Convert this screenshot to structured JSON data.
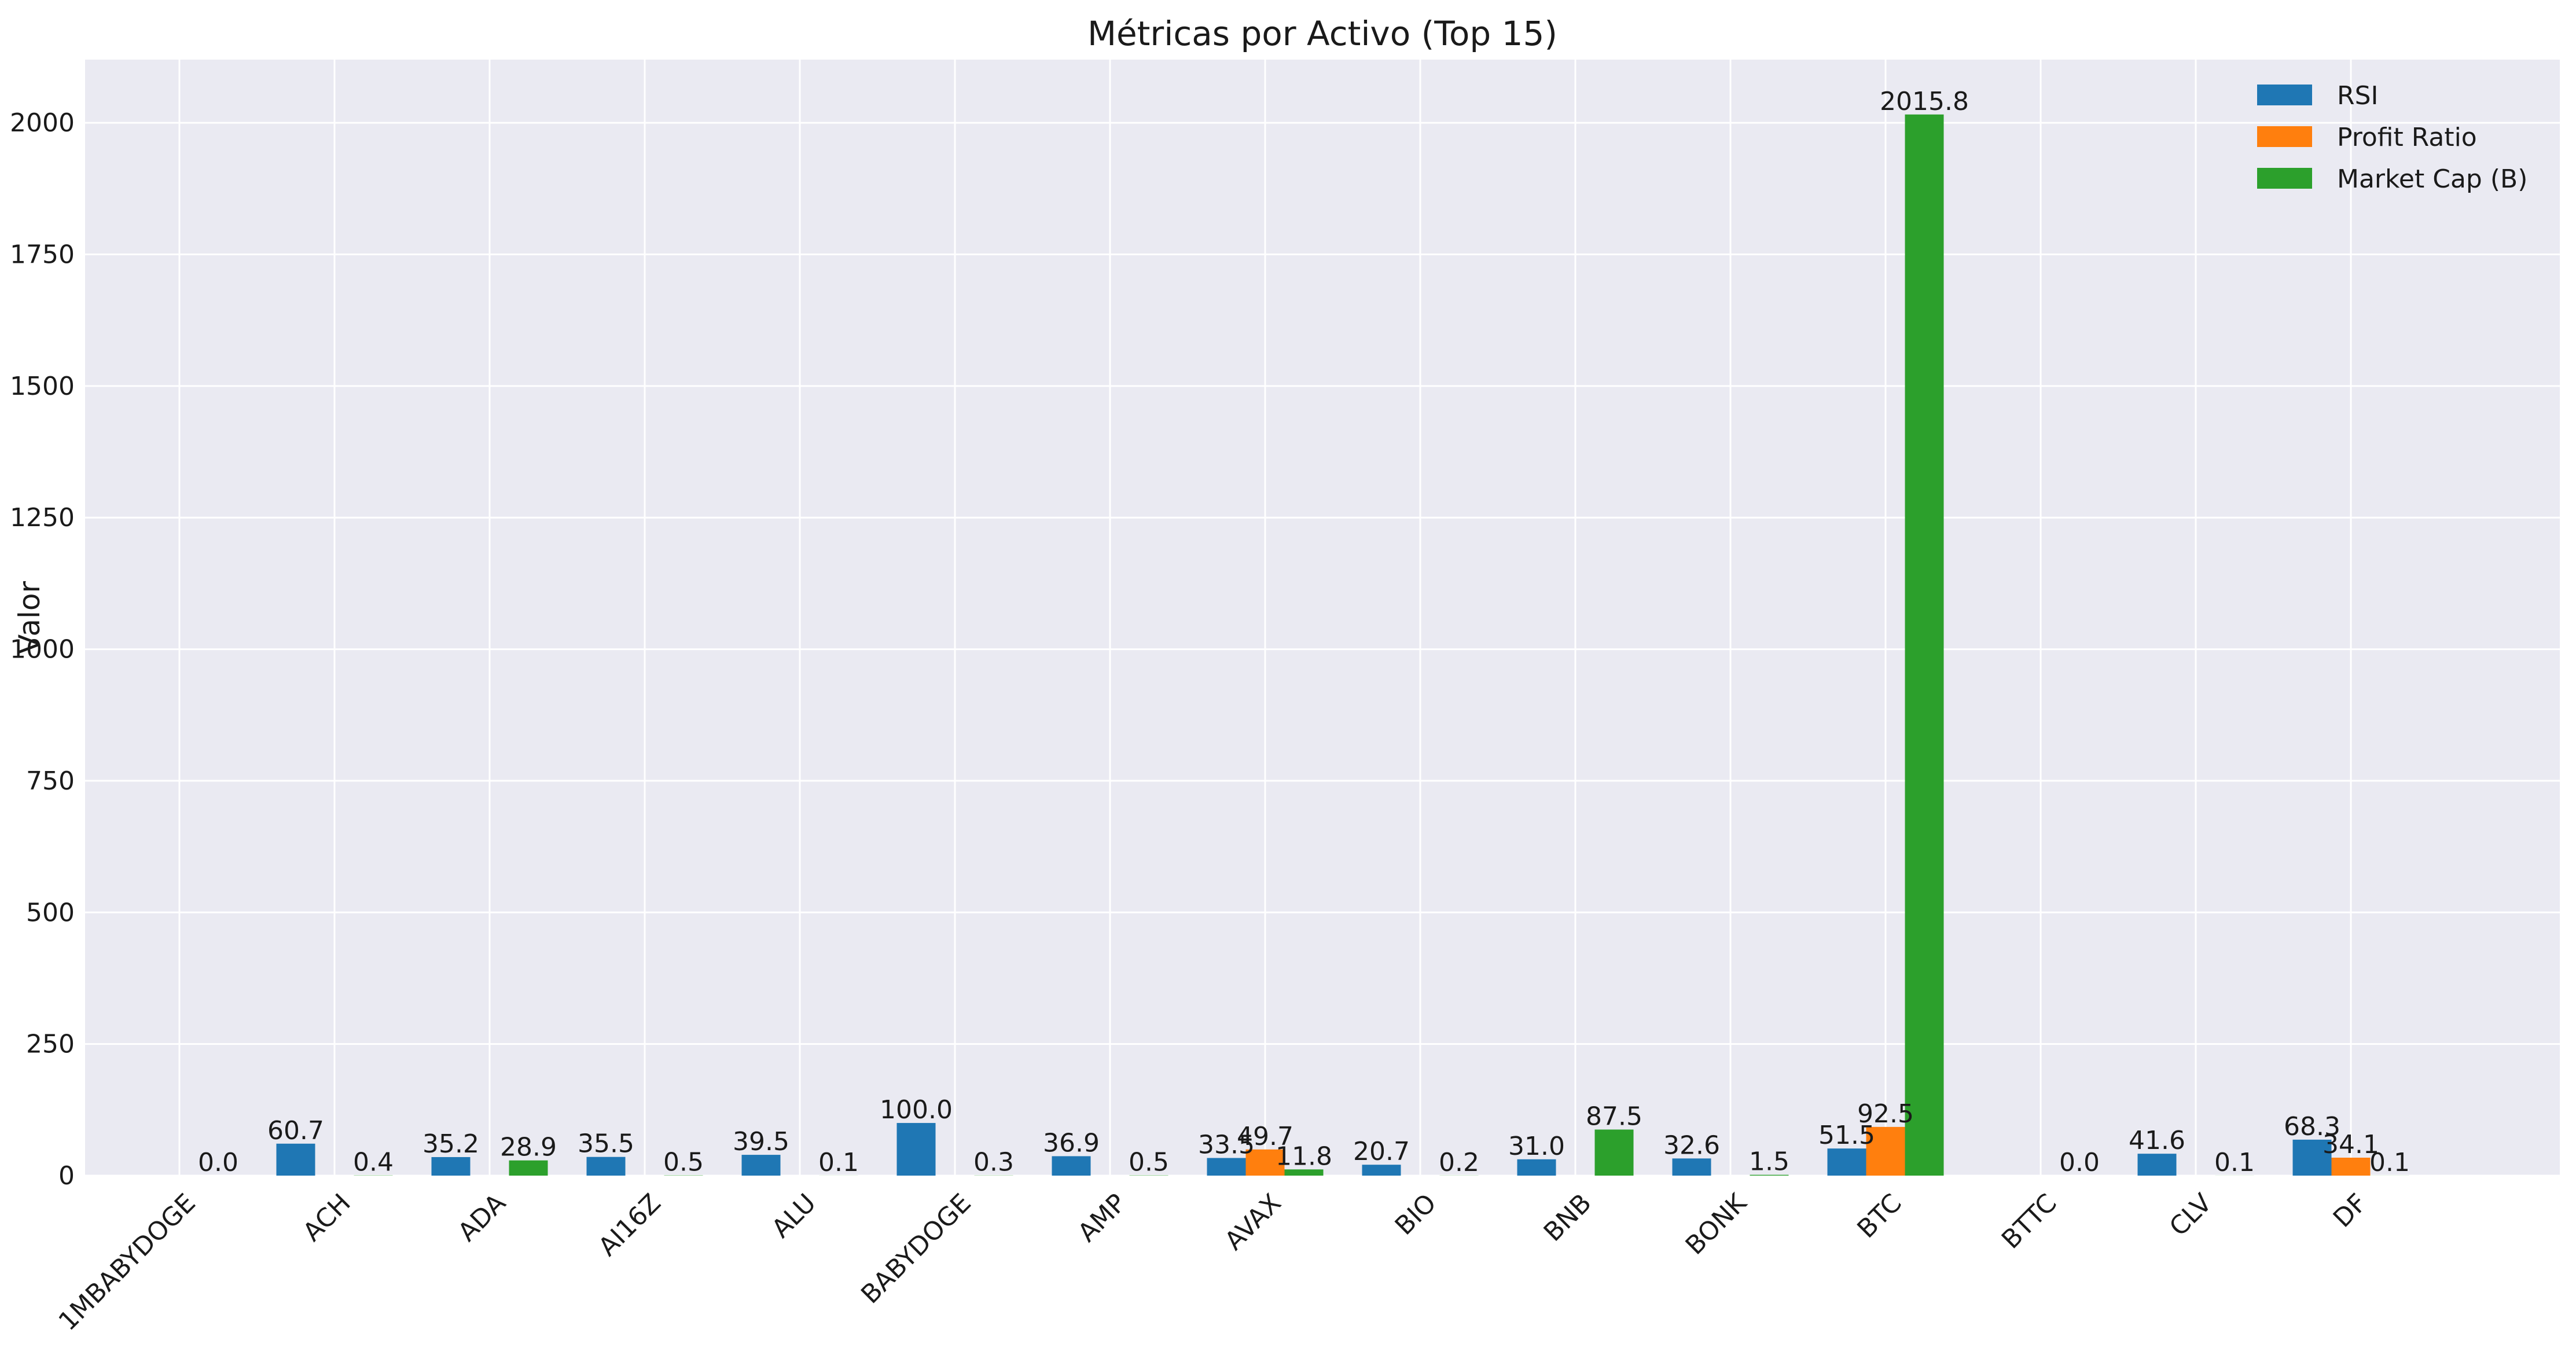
{
  "chart_data": {
    "type": "bar",
    "title": "Métricas por Activo (Top 15)",
    "xlabel": "",
    "ylabel": "Valor",
    "ylim": [
      0,
      2120
    ],
    "yticks": [
      0,
      250,
      500,
      750,
      1000,
      1250,
      1500,
      1750,
      2000
    ],
    "grid": true,
    "legend_position": "top-right",
    "categories": [
      "1MBABYDOGE",
      "ACH",
      "ADA",
      "AI16Z",
      "ALU",
      "BABYDOGE",
      "AMP",
      "AVAX",
      "BIO",
      "BNB",
      "BONK",
      "BTC",
      "BTTC",
      "CLV",
      "DF"
    ],
    "series": [
      {
        "name": "RSI",
        "color": "#1f77b4",
        "values": [
          null,
          60.7,
          35.2,
          35.5,
          39.5,
          100.0,
          36.9,
          33.5,
          20.7,
          31.0,
          32.6,
          51.5,
          null,
          41.6,
          68.3
        ],
        "labels": [
          "",
          "60.7",
          "35.2",
          "35.5",
          "39.5",
          "100.0",
          "36.9",
          "33.5",
          "20.7",
          "31.0",
          "32.6",
          "51.5",
          "",
          "41.6",
          "68.3"
        ]
      },
      {
        "name": "Profit Ratio",
        "color": "#ff7f0e",
        "values": [
          null,
          null,
          null,
          null,
          null,
          null,
          null,
          49.7,
          null,
          null,
          null,
          92.5,
          null,
          null,
          34.1
        ],
        "labels": [
          "",
          "",
          "",
          "",
          "",
          "",
          "",
          "49.7",
          "",
          "",
          "",
          "92.5",
          "",
          "",
          "34.1"
        ]
      },
      {
        "name": "Market Cap (B)",
        "color": "#2ca02c",
        "values": [
          0.0,
          0.4,
          28.9,
          0.5,
          0.1,
          0.3,
          0.5,
          11.8,
          0.2,
          87.5,
          1.5,
          2015.8,
          0.0,
          0.1,
          0.1
        ],
        "labels": [
          "0.0",
          "0.4",
          "28.9",
          "0.5",
          "0.1",
          "0.3",
          "0.5",
          "11.8",
          "0.2",
          "87.5",
          "1.5",
          "2015.8",
          "0.0",
          "0.1",
          "0.1"
        ]
      }
    ]
  },
  "style": {
    "plot_background": "#eaeaf2",
    "grid_color": "#ffffff",
    "text_color": "#1a1a1a"
  }
}
